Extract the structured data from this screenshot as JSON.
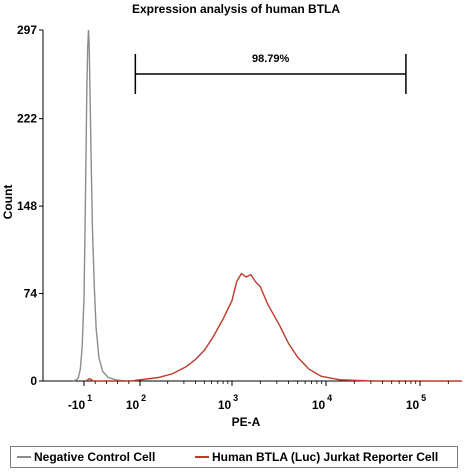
{
  "chart_data": {
    "type": "histogram",
    "title": "Expression analysis of human BTLA",
    "xlabel": "PE-A",
    "ylabel": "Count",
    "y_ticks": [
      "0",
      "74",
      "148",
      "222",
      "297"
    ],
    "y_tick_values": [
      0,
      74,
      148,
      222,
      297
    ],
    "ylim": [
      0,
      297
    ],
    "x_ticks": [
      {
        "base": "-10",
        "exp": "1",
        "decade": -1
      },
      {
        "base": "10",
        "exp": "2",
        "decade": 2
      },
      {
        "base": "10",
        "exp": "3",
        "decade": 3
      },
      {
        "base": "10",
        "exp": "4",
        "decade": 4
      },
      {
        "base": "10",
        "exp": "5",
        "decade": 5
      }
    ],
    "x_scale": "biexponential (log decades)",
    "gate": {
      "label": "98.79%",
      "x_start": 1.75,
      "x_end": 4.85
    },
    "series": [
      {
        "name": "Negative Control Cell",
        "color": "#8c8c8c",
        "points": [
          [
            -1.6,
            0
          ],
          [
            -1.4,
            1
          ],
          [
            -1.3,
            3
          ],
          [
            -1.2,
            10
          ],
          [
            -1.1,
            28
          ],
          [
            -1.0,
            70
          ],
          [
            -0.95,
            120
          ],
          [
            -0.9,
            185
          ],
          [
            -0.85,
            245
          ],
          [
            -0.8,
            282
          ],
          [
            -0.76,
            297
          ],
          [
            -0.72,
            285
          ],
          [
            -0.68,
            245
          ],
          [
            -0.62,
            190
          ],
          [
            -0.55,
            130
          ],
          [
            -0.45,
            80
          ],
          [
            -0.35,
            45
          ],
          [
            -0.2,
            20
          ],
          [
            0.0,
            8
          ],
          [
            0.3,
            3
          ],
          [
            0.7,
            1
          ],
          [
            1.2,
            0
          ]
        ]
      },
      {
        "name": "Human BTLA (Luc) Jurkat Reporter Cell",
        "color": "#c0392b",
        "points": [
          [
            -0.9,
            0
          ],
          [
            -0.7,
            2
          ],
          [
            -0.5,
            0
          ],
          [
            0.5,
            0
          ],
          [
            1.5,
            0
          ],
          [
            2.0,
            1
          ],
          [
            2.2,
            3
          ],
          [
            2.35,
            6
          ],
          [
            2.5,
            12
          ],
          [
            2.6,
            18
          ],
          [
            2.7,
            26
          ],
          [
            2.8,
            38
          ],
          [
            2.9,
            52
          ],
          [
            3.0,
            68
          ],
          [
            3.05,
            84
          ],
          [
            3.1,
            91
          ],
          [
            3.15,
            88
          ],
          [
            3.2,
            90
          ],
          [
            3.25,
            84
          ],
          [
            3.3,
            80
          ],
          [
            3.38,
            65
          ],
          [
            3.5,
            48
          ],
          [
            3.6,
            32
          ],
          [
            3.7,
            20
          ],
          [
            3.82,
            10
          ],
          [
            3.95,
            4
          ],
          [
            4.15,
            1
          ],
          [
            4.5,
            0
          ],
          [
            5.5,
            0
          ]
        ]
      }
    ]
  },
  "legend": {
    "items": [
      {
        "label": "Negative Control Cell",
        "color": "#8c8c8c"
      },
      {
        "label": "Human BTLA (Luc) Jurkat Reporter Cell",
        "color": "#c0392b"
      }
    ]
  }
}
